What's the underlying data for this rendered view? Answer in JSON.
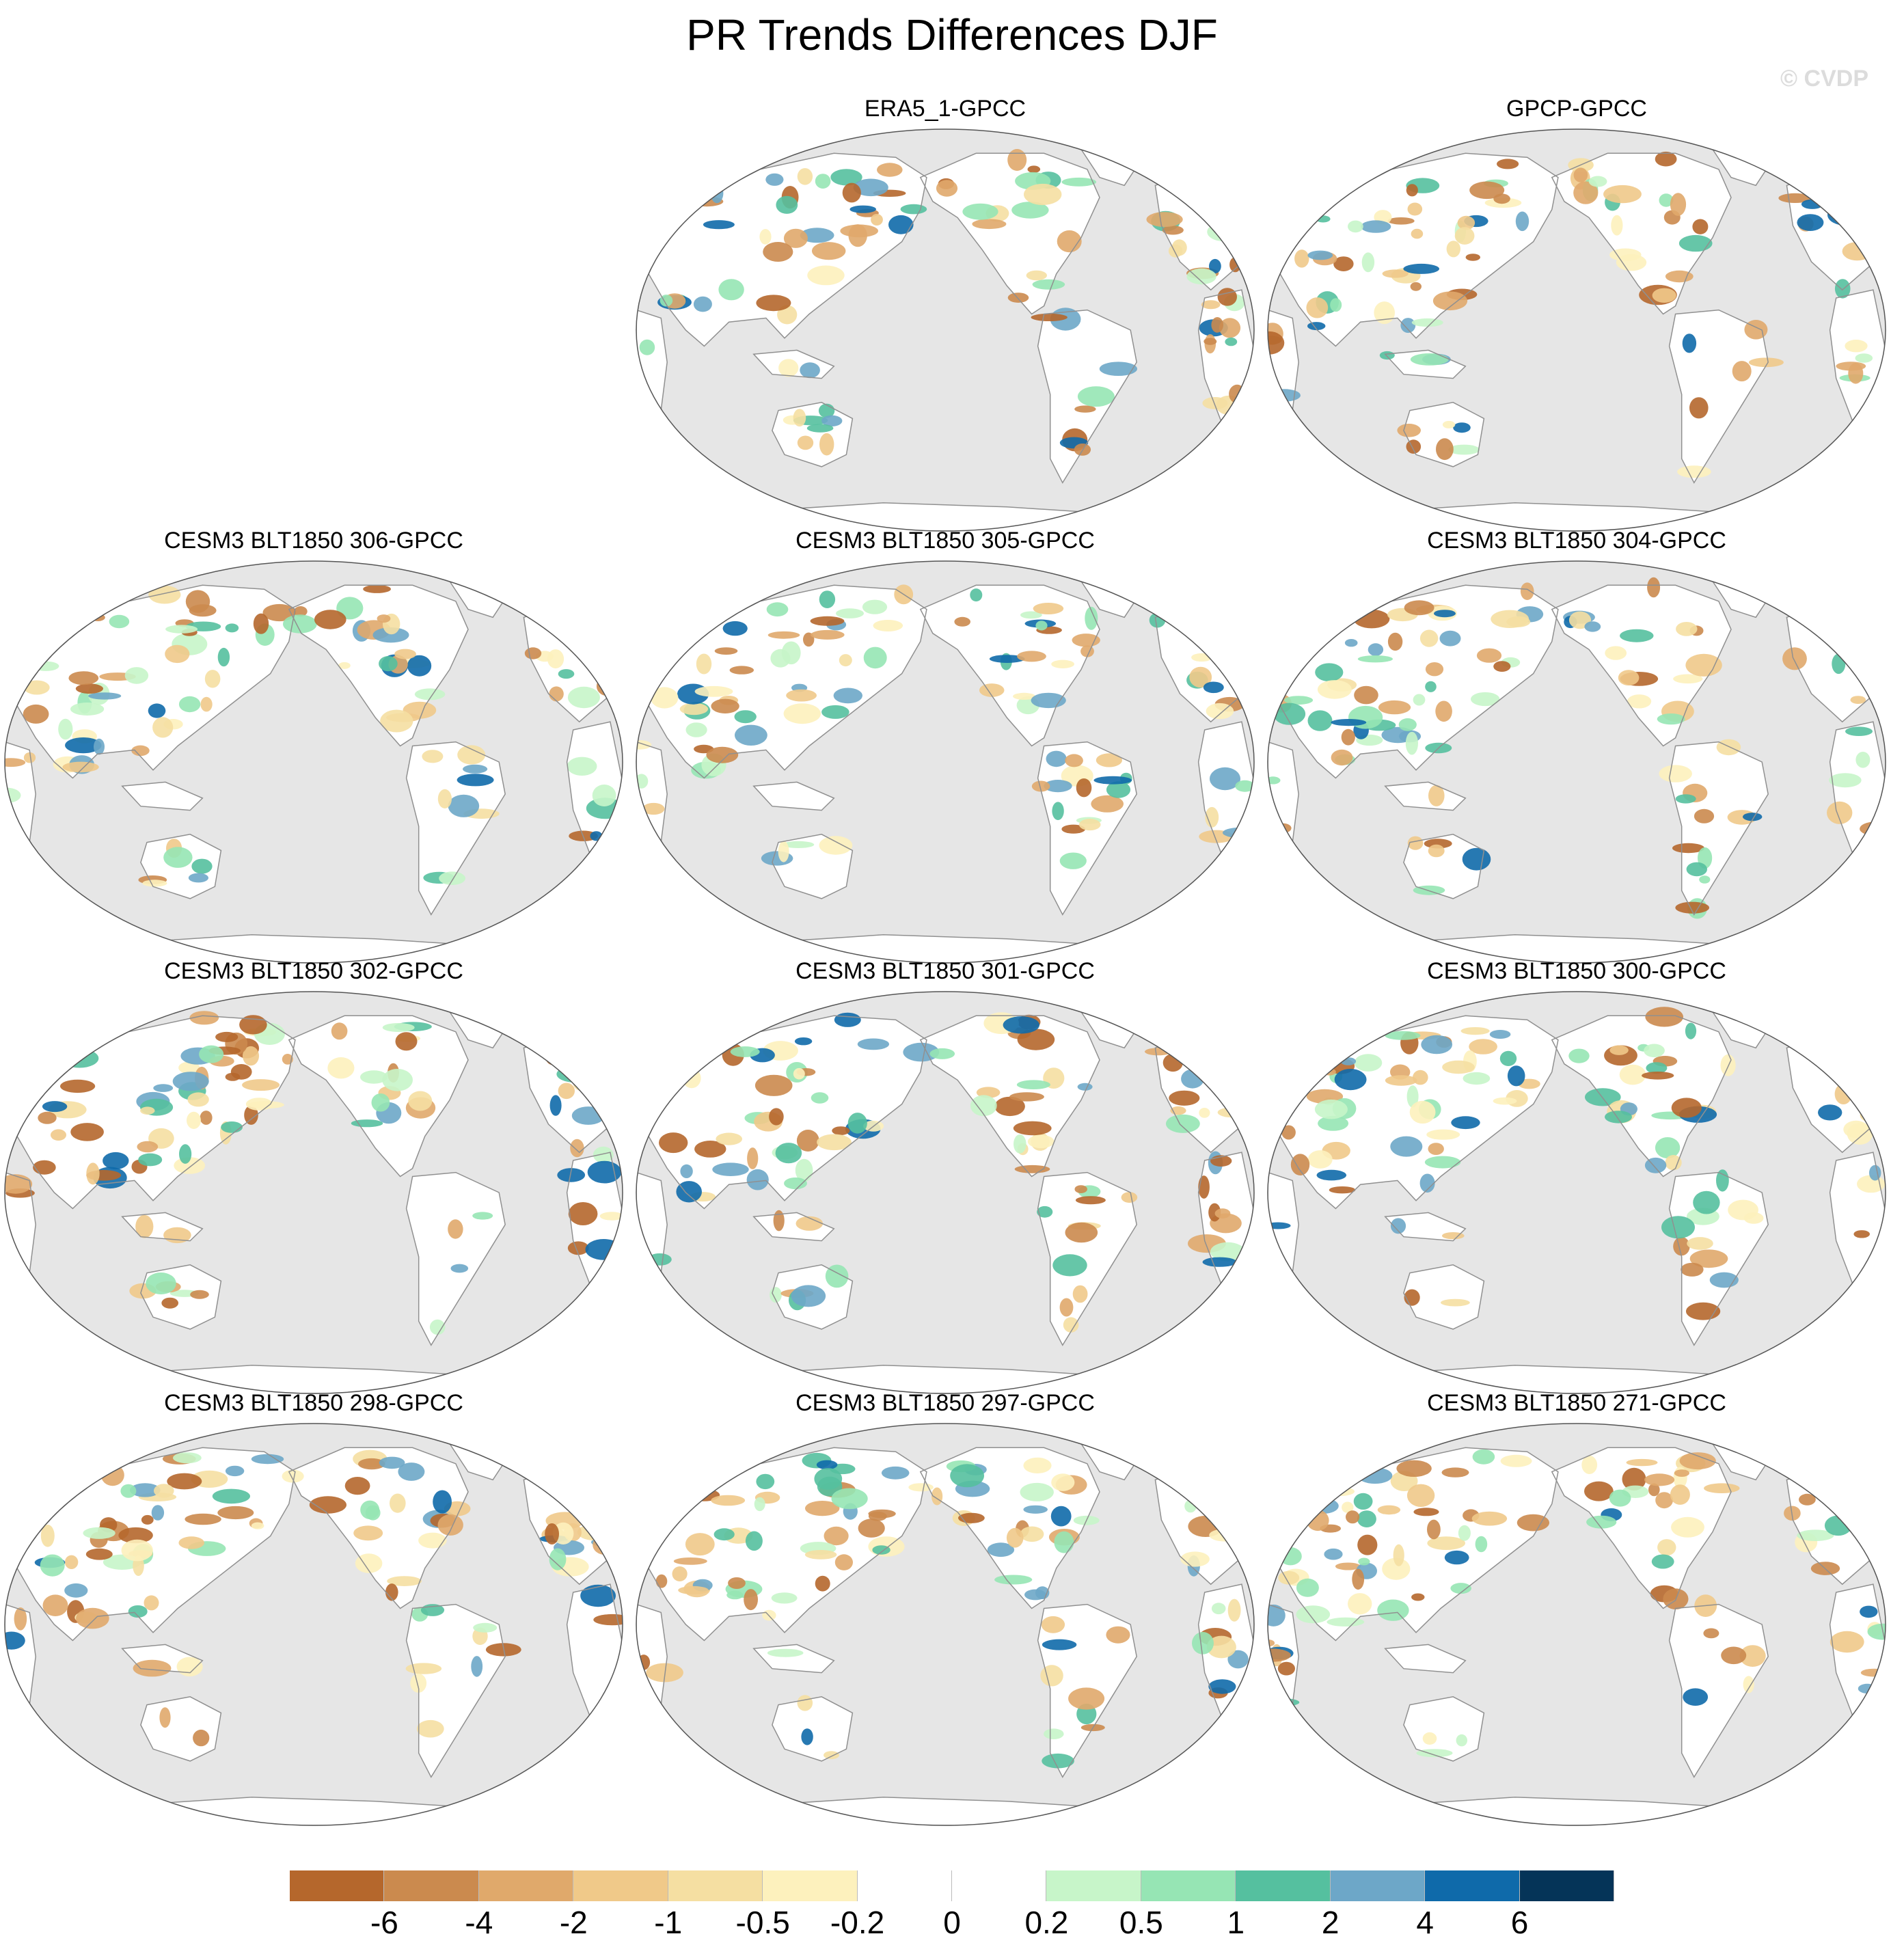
{
  "title": "PR Trends Differences DJF",
  "watermark": "© CVDP",
  "panels": [
    {
      "title": "ERA5_1-GPCC"
    },
    {
      "title": "GPCP-GPCC"
    },
    {
      "title": "CESM3 BLT1850 306-GPCC"
    },
    {
      "title": "CESM3 BLT1850 305-GPCC"
    },
    {
      "title": "CESM3 BLT1850 304-GPCC"
    },
    {
      "title": "CESM3 BLT1850 302-GPCC"
    },
    {
      "title": "CESM3 BLT1850 301-GPCC"
    },
    {
      "title": "CESM3 BLT1850 300-GPCC"
    },
    {
      "title": "CESM3 BLT1850 298-GPCC"
    },
    {
      "title": "CESM3 BLT1850 297-GPCC"
    },
    {
      "title": "CESM3 BLT1850 271-GPCC"
    }
  ],
  "colorbar": {
    "colors": [
      "#b5672c",
      "#cb8a4e",
      "#e0a96b",
      "#f0c989",
      "#f5dfa2",
      "#fdf1bd",
      "#ffffff",
      "#ffffff",
      "#c7f5c9",
      "#96e5b4",
      "#55c09f",
      "#6da7c8",
      "#0f6aaa",
      "#053458"
    ],
    "labels": [
      "-6",
      "-4",
      "-2",
      "-1",
      "-0.5",
      "-0.2",
      "0",
      "0.2",
      "0.5",
      "1",
      "2",
      "4",
      "6"
    ]
  },
  "colors": {
    "ocean": "#e6e6e6",
    "land": "#ffffff",
    "coast": "#909090"
  }
}
